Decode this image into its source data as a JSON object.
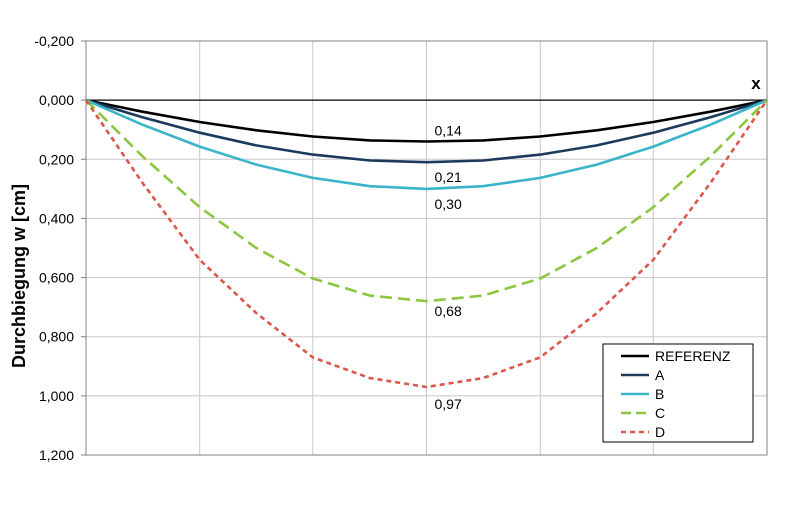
{
  "chart_data": {
    "type": "line",
    "ylabel": "Durchbiegung w  [cm]",
    "x_axis_marker": "x",
    "y_axis": {
      "min": -0.2,
      "max": 1.2,
      "step": 0.2,
      "inverted": true,
      "tick_labels": [
        "-0,200",
        "0,000",
        "0,200",
        "0,400",
        "0,600",
        "0,800",
        "1,000",
        "1,200"
      ]
    },
    "x": [
      0,
      0.083,
      0.167,
      0.25,
      0.333,
      0.417,
      0.5,
      0.583,
      0.667,
      0.75,
      0.833,
      0.917,
      1.0
    ],
    "x_gridlines": [
      0,
      0.167,
      0.333,
      0.5,
      0.667,
      0.833,
      1.0
    ],
    "grid": true,
    "legend_position": "bottom-right",
    "series": [
      {
        "name": "REFERENZ",
        "color": "#000000",
        "dash": "solid",
        "values": [
          0,
          0.039,
          0.074,
          0.102,
          0.123,
          0.136,
          0.14,
          0.136,
          0.123,
          0.102,
          0.074,
          0.039,
          0
        ]
      },
      {
        "name": "A",
        "color": "#1b3a5c",
        "dash": "solid",
        "values": [
          0,
          0.058,
          0.11,
          0.153,
          0.184,
          0.204,
          0.21,
          0.204,
          0.184,
          0.153,
          0.11,
          0.058,
          0
        ]
      },
      {
        "name": "B",
        "color": "#3ab4c8",
        "dash": "solid",
        "values": [
          0,
          0.083,
          0.157,
          0.218,
          0.263,
          0.291,
          0.3,
          0.291,
          0.263,
          0.218,
          0.157,
          0.083,
          0
        ]
      },
      {
        "name": "C",
        "color": "#8cc63f",
        "dash": "long-dash",
        "values": [
          0,
          0.19,
          0.362,
          0.5,
          0.603,
          0.661,
          0.68,
          0.661,
          0.603,
          0.5,
          0.362,
          0.19,
          0
        ]
      },
      {
        "name": "D",
        "color": "#d9584a",
        "dash": "short-dash",
        "values": [
          0,
          0.28,
          0.54,
          0.72,
          0.87,
          0.94,
          0.97,
          0.94,
          0.87,
          0.72,
          0.54,
          0.28,
          0
        ]
      }
    ],
    "annotations": [
      {
        "text": "0,14",
        "x": 0.5,
        "y": 0.14
      },
      {
        "text": "0,21",
        "x": 0.5,
        "y": 0.21
      },
      {
        "text": "0,30",
        "x": 0.5,
        "y": 0.3
      },
      {
        "text": "0,68",
        "x": 0.5,
        "y": 0.68
      },
      {
        "text": "0,97",
        "x": 0.5,
        "y": 0.97
      }
    ]
  }
}
